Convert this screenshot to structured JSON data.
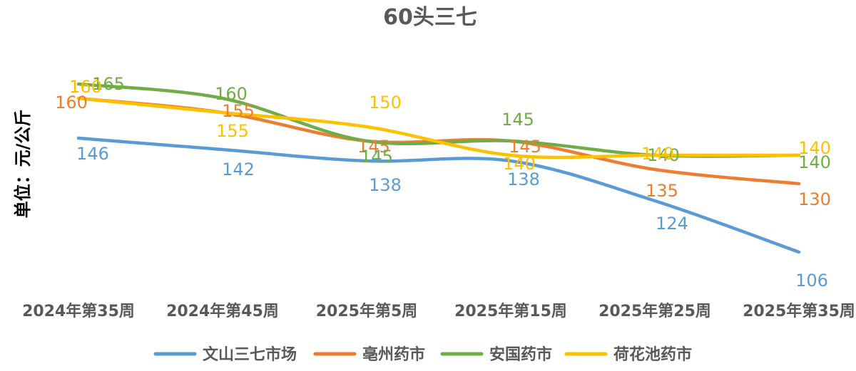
{
  "chart_data": {
    "type": "line",
    "title": "60头三七",
    "xlabel": "",
    "ylabel": "单位：元/公斤",
    "categories": [
      "2024年第35周",
      "2024年第45周",
      "2025年第5周",
      "2025年第15周",
      "2025年第25周",
      "2025年第35周"
    ],
    "series": [
      {
        "name": "文山三七市场",
        "color": "#5B9BD5",
        "values": [
          146,
          142,
          138,
          138,
          124,
          106
        ]
      },
      {
        "name": "亳州药市",
        "color": "#ED7D31",
        "values": [
          160,
          155,
          145,
          145,
          135,
          130
        ]
      },
      {
        "name": "安国药市",
        "color": "#70AD47",
        "values": [
          165,
          160,
          145,
          145,
          140,
          140
        ]
      },
      {
        "name": "荷花池药市",
        "color": "#FFC000",
        "values": [
          160,
          155,
          150,
          140,
          140,
          140
        ]
      }
    ],
    "ylim": [
      95,
      175
    ],
    "grid": false,
    "legend": "bottom",
    "smooth": true
  }
}
